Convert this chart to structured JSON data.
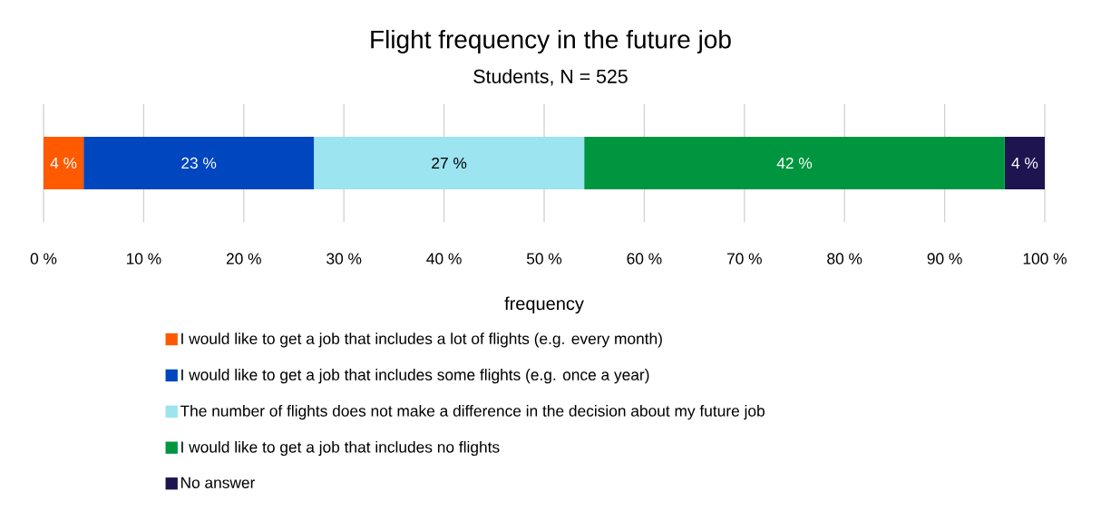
{
  "chart_data": {
    "type": "bar",
    "orientation": "horizontal",
    "stacked": true,
    "title": "Flight frequency in the future job",
    "subtitle": "Students, N = 525",
    "xlabel": "frequency",
    "categories": [
      null
    ],
    "series": [
      {
        "name": "I would like to get a job that includes a lot of flights (e.g. every month)",
        "color": "#ff5a00",
        "values": [
          4
        ],
        "value_labels": [
          "4 %"
        ]
      },
      {
        "name": "I would like to get a job that includes some flights (e.g. once a year)",
        "color": "#0046be",
        "values": [
          23
        ],
        "value_labels": [
          "23 %"
        ]
      },
      {
        "name": "The number of flights does not make a difference in the decision about my future job",
        "color": "#9be4f0",
        "values": [
          27
        ],
        "value_labels": [
          "27 %"
        ]
      },
      {
        "name": "I would like to get a job that includes no flights",
        "color": "#00963f",
        "values": [
          42
        ],
        "value_labels": [
          "42 %"
        ]
      },
      {
        "name": "No answer",
        "color": "#1e1450",
        "values": [
          4
        ],
        "value_labels": [
          "4 %"
        ]
      }
    ],
    "xlim": [
      0,
      100
    ],
    "xticks": [
      {
        "value": 0,
        "label": "0 %"
      },
      {
        "value": 10,
        "label": "10 %"
      },
      {
        "value": 20,
        "label": "20 %"
      },
      {
        "value": 30,
        "label": "30 %"
      },
      {
        "value": 40,
        "label": "40 %"
      },
      {
        "value": 50,
        "label": "50 %"
      },
      {
        "value": 60,
        "label": "60 %"
      },
      {
        "value": 70,
        "label": "70 %"
      },
      {
        "value": 80,
        "label": "80 %"
      },
      {
        "value": 90,
        "label": "90 %"
      },
      {
        "value": 100,
        "label": "100 %"
      }
    ],
    "grid": "x",
    "legend": "bottom"
  }
}
